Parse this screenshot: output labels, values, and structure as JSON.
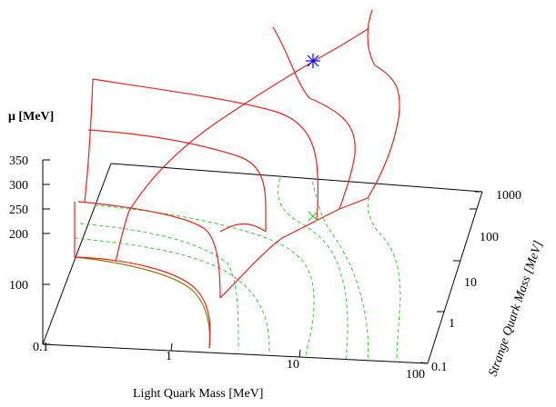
{
  "chart_data": {
    "type": "3d-line",
    "title": "",
    "xlabel": "Light Quark Mass [MeV]",
    "ylabel": "Strange Quark Mass [MeV]",
    "zlabel": "μ [MeV]",
    "x_ticks": [
      "0.1",
      "1",
      "10",
      "100"
    ],
    "y_ticks": [
      "0.1",
      "1",
      "10",
      "100",
      "1000"
    ],
    "z_ticks": [
      "100",
      "200",
      "250",
      "300",
      "350"
    ],
    "x_scale": "log",
    "y_scale": "log",
    "xlim": [
      0.1,
      100
    ],
    "ylim": [
      0.1,
      1000
    ],
    "zlim": [
      0,
      350
    ],
    "colors": {
      "surface": "#e8231c",
      "contour": "#33cc33",
      "base_projection": "#8a7b00",
      "critical_point": "#0000ff",
      "projected_point": "#33cc33",
      "frame": "#000000"
    },
    "markers": [
      {
        "name": "critical-point",
        "symbol": "*"
      },
      {
        "name": "critical-point-projection",
        "symbol": "x"
      }
    ],
    "legend": "none",
    "grid": false
  }
}
